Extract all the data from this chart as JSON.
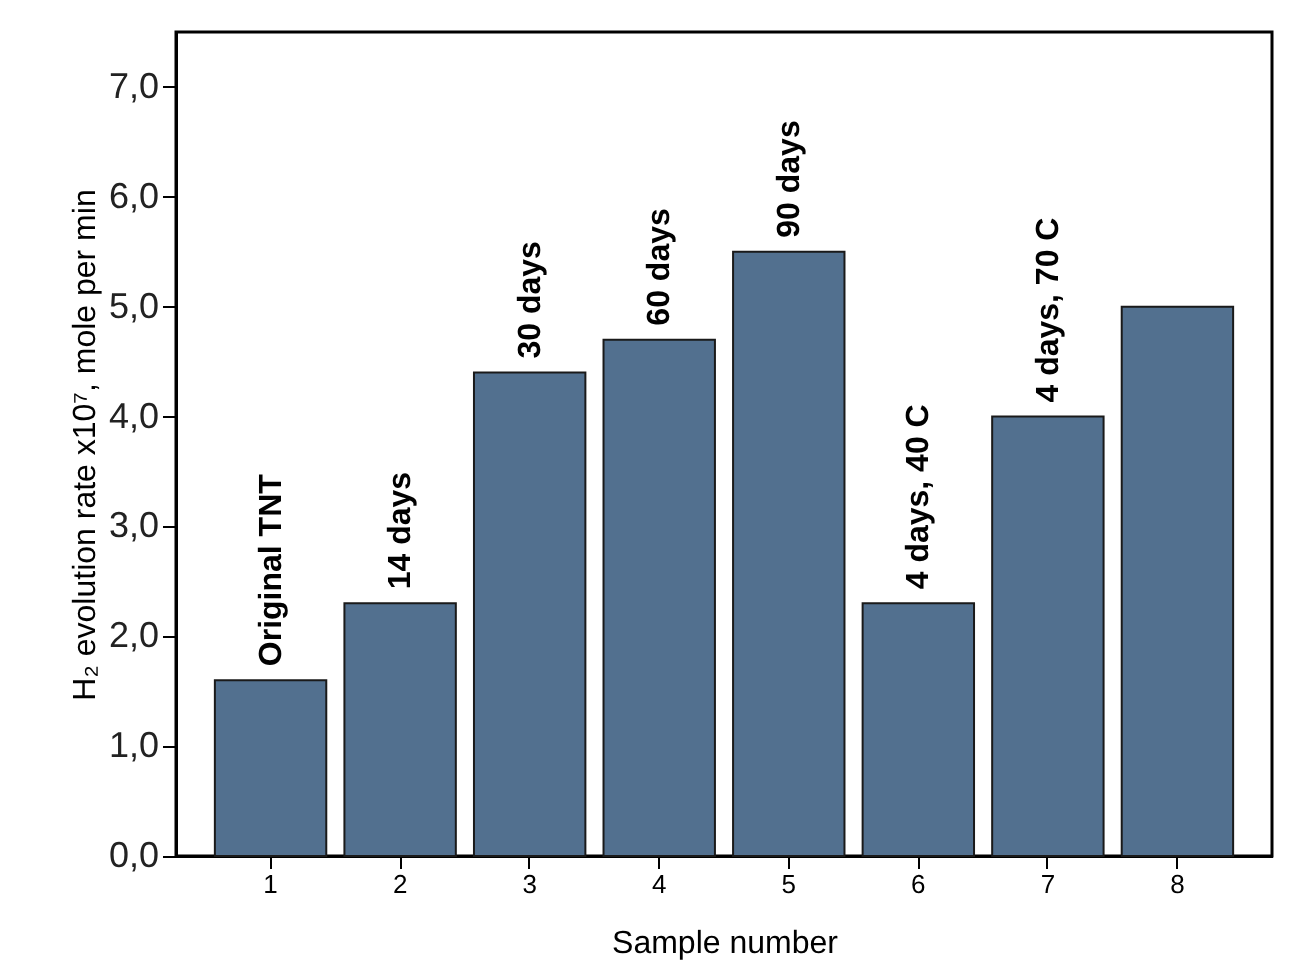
{
  "chart_data": {
    "type": "bar",
    "xlabel": "Sample number",
    "ylabel": "H₂ evolution rate x10⁷, mole per min",
    "categories": [
      "1",
      "2",
      "3",
      "4",
      "5",
      "6",
      "7",
      "8"
    ],
    "values": [
      1.6,
      2.3,
      4.4,
      4.7,
      5.5,
      2.3,
      4.0,
      5.0
    ],
    "color": "#52708f",
    "ylim": [
      0,
      7.5
    ],
    "yticks": [
      {
        "value": 0,
        "label": "0,0"
      },
      {
        "value": 1,
        "label": "1,0"
      },
      {
        "value": 2,
        "label": "2,0"
      },
      {
        "value": 3,
        "label": "3,0"
      },
      {
        "value": 4,
        "label": "4,0"
      },
      {
        "value": 5,
        "label": "5,0"
      },
      {
        "value": 6,
        "label": "6,0"
      },
      {
        "value": 7,
        "label": "7,0"
      }
    ],
    "annotations": [
      {
        "text": "Original TNT",
        "x": "1",
        "y": 1.6
      },
      {
        "text": "14 days",
        "x": "2",
        "y": 2.3
      },
      {
        "text": "30 days",
        "x": "3",
        "y": 4.4
      },
      {
        "text": "60 days",
        "x": "4",
        "y": 4.7
      },
      {
        "text": "90 days",
        "x": "5",
        "y": 5.5
      },
      {
        "text": "4 days, 40 C",
        "x": "6",
        "y": 2.3
      },
      {
        "text": "4 days, 70 C",
        "x": "7",
        "y": 4.0
      }
    ],
    "grid": false
  }
}
